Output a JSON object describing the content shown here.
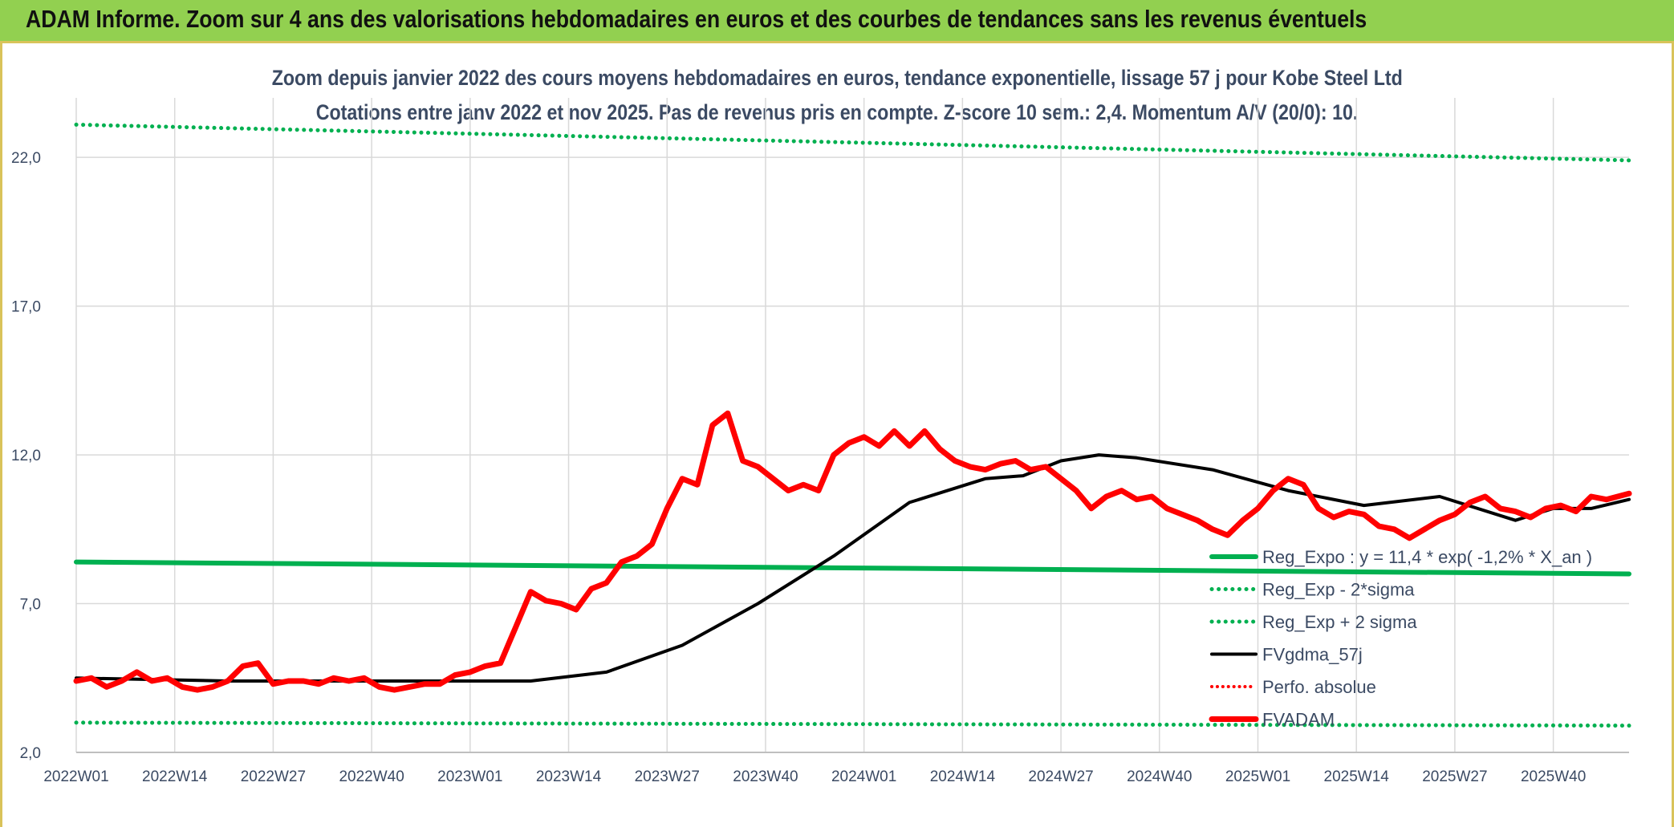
{
  "header": {
    "banner_title": "ADAM Informe. Zoom sur 4 ans des valorisations hebdomadaires en euros et des courbes de tendances sans les revenus éventuels"
  },
  "chart_data": {
    "type": "line",
    "title": "Zoom depuis janvier 2022 des cours moyens hebdomadaires en euros, tendance exponentielle, lissage 57 j pour Kobe Steel Ltd",
    "subtitle": "Cotations entre janv 2022 et nov 2025. Pas de revenus pris en compte. Z-score 10 sem.: 2,4. Momentum A/V (20/0): 10.",
    "xlabel": "",
    "ylabel": "",
    "ylim": [
      2,
      24
    ],
    "yticks": [
      2,
      7,
      12,
      17,
      22
    ],
    "ytick_labels": [
      "2,0",
      "7,0",
      "12,0",
      "17,0",
      "22,0"
    ],
    "x_tick_labels": [
      "2022W01",
      "2022W14",
      "2022W27",
      "2022W40",
      "2023W01",
      "2023W14",
      "2023W27",
      "2023W40",
      "2024W01",
      "2024W14",
      "2024W27",
      "2024W40",
      "2025W01",
      "2025W14",
      "2025W27",
      "2025W40"
    ],
    "x_tick_index_step": 13,
    "n_weeks": 206,
    "grid": true,
    "legend_position": "bottom-right",
    "series": [
      {
        "name": "Reg_Expo : y = 11,4 * exp( -1,2% *  X_an )",
        "color": "#00b050",
        "style": "solid",
        "width": 6,
        "x": [
          0,
          205
        ],
        "y": [
          8.4,
          8.0
        ]
      },
      {
        "name": "Reg_Exp - 2*sigma",
        "color": "#00b050",
        "style": "dotted",
        "width": 5,
        "x": [
          0,
          205
        ],
        "y": [
          3.0,
          2.9
        ]
      },
      {
        "name": "Reg_Exp + 2 sigma",
        "color": "#00b050",
        "style": "dotted",
        "width": 5,
        "x": [
          0,
          205
        ],
        "y": [
          23.1,
          21.9
        ]
      },
      {
        "name": "FVgdma_57j",
        "color": "#000000",
        "style": "solid",
        "width": 4,
        "x": [
          0,
          20,
          40,
          60,
          70,
          80,
          90,
          100,
          110,
          120,
          125,
          130,
          135,
          140,
          150,
          160,
          170,
          180,
          190,
          195,
          200,
          205
        ],
        "y": [
          4.5,
          4.4,
          4.4,
          4.4,
          4.7,
          5.6,
          7.0,
          8.6,
          10.4,
          11.2,
          11.3,
          11.8,
          12.0,
          11.9,
          11.5,
          10.8,
          10.3,
          10.6,
          9.8,
          10.2,
          10.2,
          10.5
        ]
      },
      {
        "name": "Perfo. absolue",
        "color": "#ff0000",
        "style": "dotted",
        "width": 4,
        "x": [],
        "y": []
      },
      {
        "name": "FVADAM",
        "color": "#ff0000",
        "style": "solid",
        "width": 7,
        "x": [
          0,
          2,
          4,
          6,
          8,
          10,
          12,
          14,
          16,
          18,
          20,
          22,
          24,
          26,
          28,
          30,
          32,
          34,
          36,
          38,
          40,
          42,
          44,
          46,
          48,
          50,
          52,
          54,
          56,
          58,
          60,
          62,
          64,
          66,
          68,
          70,
          72,
          74,
          76,
          78,
          80,
          82,
          84,
          86,
          88,
          90,
          92,
          94,
          96,
          98,
          100,
          102,
          104,
          106,
          108,
          110,
          112,
          114,
          116,
          118,
          120,
          122,
          124,
          126,
          128,
          130,
          132,
          134,
          136,
          138,
          140,
          142,
          144,
          146,
          148,
          150,
          152,
          154,
          156,
          158,
          160,
          162,
          164,
          166,
          168,
          170,
          172,
          174,
          176,
          178,
          180,
          182,
          184,
          186,
          188,
          190,
          192,
          194,
          196,
          198,
          200,
          202,
          205
        ],
        "y": [
          4.4,
          4.5,
          4.2,
          4.4,
          4.7,
          4.4,
          4.5,
          4.2,
          4.1,
          4.2,
          4.4,
          4.9,
          5.0,
          4.3,
          4.4,
          4.4,
          4.3,
          4.5,
          4.4,
          4.5,
          4.2,
          4.1,
          4.2,
          4.3,
          4.3,
          4.6,
          4.7,
          4.9,
          5.0,
          6.2,
          7.4,
          7.1,
          7.0,
          6.8,
          7.5,
          7.7,
          8.4,
          8.6,
          9.0,
          10.2,
          11.2,
          11.0,
          13.0,
          13.4,
          11.8,
          11.6,
          11.2,
          10.8,
          11.0,
          10.8,
          12.0,
          12.4,
          12.6,
          12.3,
          12.8,
          12.3,
          12.8,
          12.2,
          11.8,
          11.6,
          11.5,
          11.7,
          11.8,
          11.5,
          11.6,
          11.2,
          10.8,
          10.2,
          10.6,
          10.8,
          10.5,
          10.6,
          10.2,
          10.0,
          9.8,
          9.5,
          9.3,
          9.8,
          10.2,
          10.8,
          11.2,
          11.0,
          10.2,
          9.9,
          10.1,
          10.0,
          9.6,
          9.5,
          9.2,
          9.5,
          9.8,
          10.0,
          10.4,
          10.6,
          10.2,
          10.1,
          9.9,
          10.2,
          10.3,
          10.1,
          10.6,
          10.5,
          10.7
        ]
      }
    ]
  }
}
